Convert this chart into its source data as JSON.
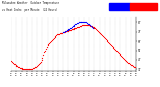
{
  "title_line1": "Milwaukee Weather  Outdoor Temperature",
  "title_line2": "vs Heat Index  per Minute  (24 Hours)",
  "ylim": [
    35,
    92
  ],
  "xlim": [
    0,
    1440
  ],
  "background_color": "#ffffff",
  "legend_colors": [
    "#0000ff",
    "#ff0000"
  ],
  "dot_color": "#ff0000",
  "dot_color2": "#0000ff",
  "dot_size": 0.8,
  "ytick_vals": [
    37,
    47,
    57,
    67,
    77,
    87
  ],
  "temp_data": [
    [
      0,
      46
    ],
    [
      10,
      45
    ],
    [
      20,
      44
    ],
    [
      30,
      43
    ],
    [
      40,
      43
    ],
    [
      50,
      42
    ],
    [
      60,
      41
    ],
    [
      70,
      41
    ],
    [
      80,
      40
    ],
    [
      90,
      40
    ],
    [
      100,
      39
    ],
    [
      110,
      39
    ],
    [
      120,
      39
    ],
    [
      130,
      38
    ],
    [
      140,
      38
    ],
    [
      150,
      38
    ],
    [
      160,
      38
    ],
    [
      170,
      37
    ],
    [
      180,
      37
    ],
    [
      190,
      37
    ],
    [
      200,
      37
    ],
    [
      210,
      38
    ],
    [
      220,
      38
    ],
    [
      230,
      38
    ],
    [
      240,
      38
    ],
    [
      250,
      39
    ],
    [
      260,
      39
    ],
    [
      270,
      40
    ],
    [
      280,
      40
    ],
    [
      290,
      40
    ],
    [
      300,
      41
    ],
    [
      310,
      42
    ],
    [
      320,
      43
    ],
    [
      330,
      44
    ],
    [
      340,
      45
    ],
    [
      350,
      47
    ],
    [
      360,
      49
    ],
    [
      370,
      52
    ],
    [
      380,
      55
    ],
    [
      390,
      57
    ],
    [
      400,
      59
    ],
    [
      410,
      61
    ],
    [
      420,
      63
    ],
    [
      430,
      64
    ],
    [
      440,
      65
    ],
    [
      450,
      66
    ],
    [
      460,
      67
    ],
    [
      470,
      68
    ],
    [
      480,
      69
    ],
    [
      490,
      70
    ],
    [
      500,
      71
    ],
    [
      510,
      72
    ],
    [
      520,
      73
    ],
    [
      530,
      74
    ],
    [
      540,
      74
    ],
    [
      550,
      74
    ],
    [
      560,
      75
    ],
    [
      570,
      75
    ],
    [
      580,
      76
    ],
    [
      590,
      76
    ],
    [
      600,
      77
    ],
    [
      610,
      77
    ],
    [
      620,
      77
    ],
    [
      630,
      78
    ],
    [
      640,
      78
    ],
    [
      650,
      78
    ],
    [
      660,
      78
    ],
    [
      670,
      79
    ],
    [
      680,
      79
    ],
    [
      690,
      79
    ],
    [
      700,
      80
    ],
    [
      710,
      80
    ],
    [
      720,
      80
    ],
    [
      730,
      81
    ],
    [
      740,
      81
    ],
    [
      750,
      81
    ],
    [
      760,
      82
    ],
    [
      770,
      82
    ],
    [
      780,
      82
    ],
    [
      790,
      83
    ],
    [
      800,
      83
    ],
    [
      810,
      83
    ],
    [
      820,
      84
    ],
    [
      830,
      84
    ],
    [
      840,
      84
    ],
    [
      850,
      84
    ],
    [
      860,
      84
    ],
    [
      870,
      84
    ],
    [
      880,
      84
    ],
    [
      890,
      84
    ],
    [
      900,
      84
    ],
    [
      910,
      83
    ],
    [
      920,
      83
    ],
    [
      930,
      83
    ],
    [
      940,
      82
    ],
    [
      950,
      82
    ],
    [
      960,
      81
    ],
    [
      970,
      81
    ],
    [
      980,
      80
    ],
    [
      990,
      79
    ],
    [
      1000,
      78
    ],
    [
      1010,
      77
    ],
    [
      1020,
      76
    ],
    [
      1030,
      75
    ],
    [
      1040,
      74
    ],
    [
      1050,
      73
    ],
    [
      1060,
      72
    ],
    [
      1070,
      71
    ],
    [
      1080,
      70
    ],
    [
      1090,
      69
    ],
    [
      1100,
      68
    ],
    [
      1110,
      67
    ],
    [
      1120,
      66
    ],
    [
      1130,
      65
    ],
    [
      1140,
      64
    ],
    [
      1150,
      63
    ],
    [
      1160,
      62
    ],
    [
      1170,
      61
    ],
    [
      1180,
      60
    ],
    [
      1190,
      59
    ],
    [
      1200,
      58
    ],
    [
      1210,
      57
    ],
    [
      1220,
      56
    ],
    [
      1230,
      55
    ],
    [
      1240,
      54
    ],
    [
      1250,
      53
    ],
    [
      1260,
      52
    ],
    [
      1270,
      51
    ],
    [
      1280,
      50
    ],
    [
      1290,
      49
    ],
    [
      1300,
      48
    ],
    [
      1310,
      47
    ],
    [
      1320,
      46
    ],
    [
      1330,
      46
    ],
    [
      1340,
      45
    ],
    [
      1350,
      44
    ],
    [
      1360,
      44
    ],
    [
      1370,
      43
    ],
    [
      1380,
      42
    ],
    [
      1390,
      42
    ],
    [
      1400,
      41
    ],
    [
      1410,
      41
    ],
    [
      1420,
      40
    ],
    [
      1430,
      40
    ]
  ],
  "heat_data": [
    [
      600,
      77
    ],
    [
      610,
      77
    ],
    [
      620,
      78
    ],
    [
      630,
      78
    ],
    [
      640,
      79
    ],
    [
      650,
      79
    ],
    [
      660,
      80
    ],
    [
      670,
      80
    ],
    [
      680,
      81
    ],
    [
      690,
      81
    ],
    [
      700,
      82
    ],
    [
      710,
      83
    ],
    [
      720,
      83
    ],
    [
      730,
      84
    ],
    [
      740,
      85
    ],
    [
      750,
      85
    ],
    [
      760,
      86
    ],
    [
      770,
      86
    ],
    [
      780,
      87
    ],
    [
      790,
      87
    ],
    [
      800,
      87
    ],
    [
      810,
      87
    ],
    [
      820,
      87
    ],
    [
      830,
      87
    ],
    [
      840,
      87
    ],
    [
      850,
      87
    ],
    [
      860,
      87
    ],
    [
      870,
      86
    ],
    [
      880,
      86
    ],
    [
      890,
      85
    ],
    [
      900,
      85
    ],
    [
      910,
      84
    ],
    [
      920,
      83
    ],
    [
      930,
      82
    ],
    [
      940,
      81
    ]
  ]
}
